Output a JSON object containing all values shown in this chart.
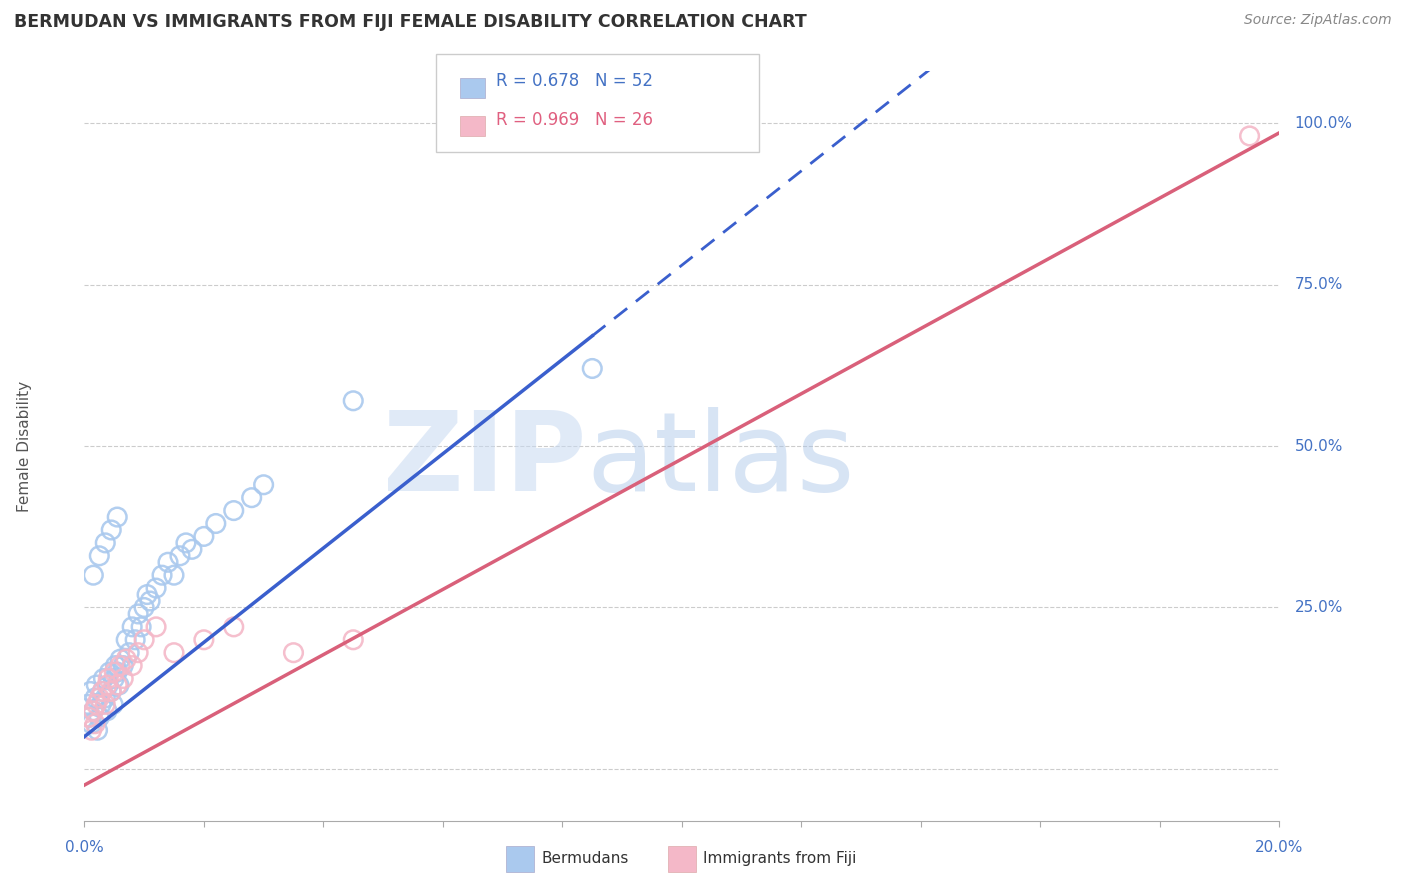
{
  "title": "BERMUDAN VS IMMIGRANTS FROM FIJI FEMALE DISABILITY CORRELATION CHART",
  "source": "Source: ZipAtlas.com",
  "ylabel_label": "Female Disability",
  "xlim": [
    0.0,
    20.0
  ],
  "ylim": [
    -8.0,
    108.0
  ],
  "yticks": [
    0.0,
    25.0,
    50.0,
    75.0,
    100.0
  ],
  "ytick_labels": [
    "",
    "25.0%",
    "50.0%",
    "75.0%",
    "100.0%"
  ],
  "xticks": [
    0.0,
    2.0,
    4.0,
    6.0,
    8.0,
    10.0,
    12.0,
    14.0,
    16.0,
    18.0,
    20.0
  ],
  "legend_blue_label": "Bermudans",
  "legend_pink_label": "Immigrants from Fiji",
  "r_blue": "R = 0.678",
  "n_blue": "N = 52",
  "r_pink": "R = 0.969",
  "n_pink": "N = 26",
  "blue_color": "#aac9ee",
  "pink_color": "#f4b8c8",
  "blue_line_color": "#3a5fcd",
  "pink_line_color": "#d9607a",
  "background_color": "#ffffff",
  "blue_scatter_x": [
    0.05,
    0.08,
    0.1,
    0.12,
    0.15,
    0.18,
    0.2,
    0.22,
    0.25,
    0.28,
    0.3,
    0.32,
    0.35,
    0.38,
    0.4,
    0.42,
    0.45,
    0.48,
    0.5,
    0.52,
    0.55,
    0.58,
    0.6,
    0.65,
    0.7,
    0.75,
    0.8,
    0.85,
    0.9,
    0.95,
    1.0,
    1.05,
    1.1,
    1.2,
    1.3,
    1.4,
    1.5,
    1.6,
    1.7,
    1.8,
    2.0,
    2.2,
    2.5,
    2.8,
    3.0,
    0.15,
    0.25,
    0.35,
    0.45,
    0.55,
    4.5,
    8.5
  ],
  "blue_scatter_y": [
    10,
    8,
    12,
    7,
    9,
    11,
    13,
    6,
    8,
    10,
    12,
    14,
    11,
    9,
    13,
    15,
    12,
    10,
    14,
    16,
    15,
    13,
    17,
    16,
    20,
    18,
    22,
    20,
    24,
    22,
    25,
    27,
    26,
    28,
    30,
    32,
    30,
    33,
    35,
    34,
    36,
    38,
    40,
    42,
    44,
    30,
    33,
    35,
    37,
    39,
    57,
    62
  ],
  "pink_scatter_x": [
    0.08,
    0.12,
    0.15,
    0.18,
    0.2,
    0.25,
    0.3,
    0.35,
    0.38,
    0.4,
    0.45,
    0.5,
    0.55,
    0.6,
    0.65,
    0.7,
    0.8,
    0.9,
    1.0,
    1.2,
    1.5,
    2.0,
    2.5,
    3.5,
    4.5,
    19.5
  ],
  "pink_scatter_y": [
    8,
    6,
    9,
    7,
    10,
    11,
    12,
    10,
    13,
    14,
    12,
    15,
    13,
    16,
    14,
    17,
    16,
    18,
    20,
    22,
    18,
    20,
    22,
    18,
    20,
    98
  ],
  "blue_solid_end_x": 8.5,
  "blue_line_slope": 7.3,
  "blue_line_intercept": 5.0,
  "pink_line_slope": 5.05,
  "pink_line_intercept": -2.5
}
